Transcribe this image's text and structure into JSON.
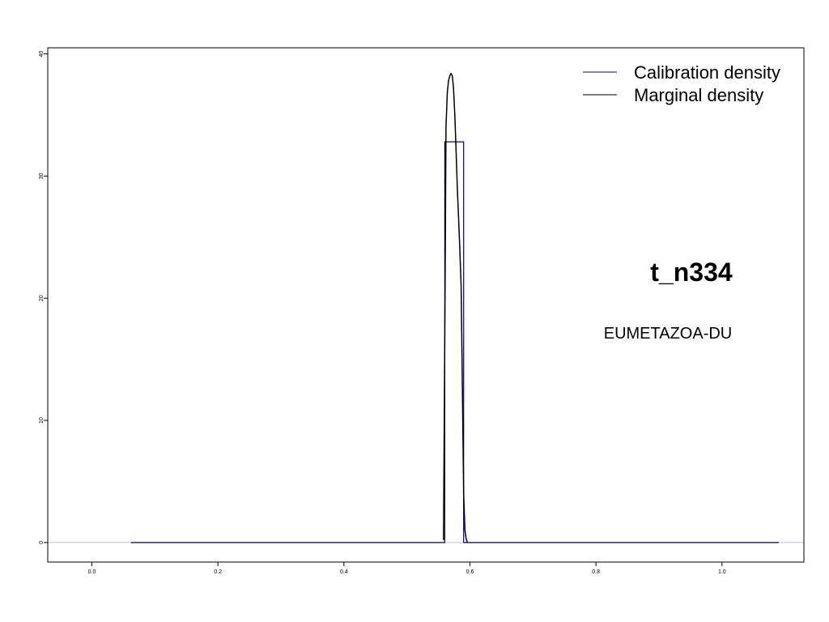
{
  "chart_data": {
    "type": "line",
    "title": "",
    "xlabel": "",
    "ylabel": "",
    "xlim": [
      -0.07,
      1.13
    ],
    "ylim": [
      -1.6,
      40.5
    ],
    "x_ticks": [
      0.0,
      0.2,
      0.4,
      0.6,
      0.8,
      1.0
    ],
    "x_tick_labels": [
      "0.0",
      "0.2",
      "0.4",
      "0.6",
      "0.8",
      "1.0"
    ],
    "y_ticks": [
      0,
      10,
      20,
      30,
      40
    ],
    "y_tick_labels": [
      "0",
      "10",
      "20",
      "30",
      "40"
    ],
    "grid": false,
    "legend_position": "top-right",
    "baseline": 0,
    "series": [
      {
        "name": "Calibration density",
        "color": "#000080",
        "style": "step",
        "x": [
          0.062,
          0.56,
          0.56,
          0.59,
          0.59,
          1.09
        ],
        "y": [
          0,
          0,
          32.8,
          32.8,
          0,
          0
        ]
      },
      {
        "name": "Marginal density",
        "color": "#000000",
        "style": "line",
        "x": [
          0.558,
          0.56,
          0.562,
          0.564,
          0.566,
          0.568,
          0.57,
          0.572,
          0.574,
          0.576,
          0.578,
          0.58,
          0.582,
          0.584,
          0.586,
          0.588,
          0.59,
          0.592,
          0.594,
          0.596
        ],
        "y": [
          0.2,
          16.5,
          34.0,
          36.8,
          37.8,
          38.2,
          38.4,
          38.2,
          37.2,
          35.0,
          32.0,
          29.0,
          26.5,
          24.0,
          21.0,
          13.0,
          4.0,
          1.0,
          0.3,
          0.0
        ]
      }
    ],
    "annotations": [
      {
        "text": "t_n334",
        "role": "node"
      },
      {
        "text": "EUMETAZOA-DU",
        "role": "clade"
      }
    ]
  }
}
